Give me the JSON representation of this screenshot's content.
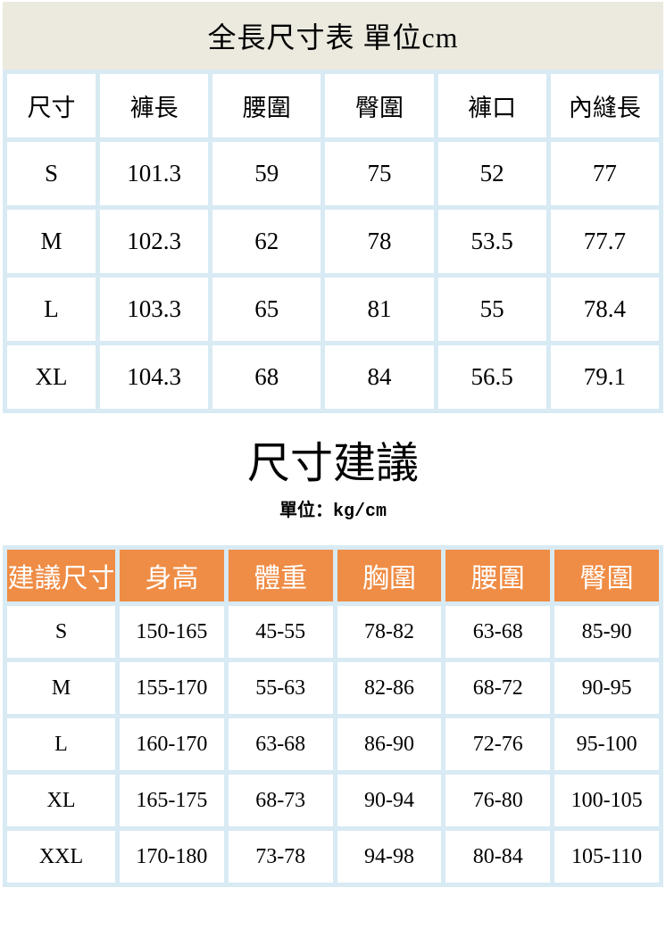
{
  "colors": {
    "banner_bg": "#ece9df",
    "grid_border": "#d8eaf3",
    "header_orange": "#ef8c45",
    "header_text": "#ffffff",
    "body_text": "#000000"
  },
  "size_table": {
    "title": "全長尺寸表 單位cm",
    "columns": [
      "尺寸",
      "褲長",
      "腰圍",
      "臀圍",
      "褲口",
      "內縫長"
    ],
    "rows": [
      [
        "S",
        "101.3",
        "59",
        "75",
        "52",
        "77"
      ],
      [
        "M",
        "102.3",
        "62",
        "78",
        "53.5",
        "77.7"
      ],
      [
        "L",
        "103.3",
        "65",
        "81",
        "55",
        "78.4"
      ],
      [
        "XL",
        "104.3",
        "68",
        "84",
        "56.5",
        "79.1"
      ]
    ]
  },
  "suggestion": {
    "title": "尺寸建議",
    "unit_label": "單位：",
    "unit_value": "kg/cm",
    "columns": [
      "建議尺寸",
      "身高",
      "體重",
      "胸圍",
      "腰圍",
      "臀圍"
    ],
    "rows": [
      [
        "S",
        "150-165",
        "45-55",
        "78-82",
        "63-68",
        "85-90"
      ],
      [
        "M",
        "155-170",
        "55-63",
        "82-86",
        "68-72",
        "90-95"
      ],
      [
        "L",
        "160-170",
        "63-68",
        "86-90",
        "72-76",
        "95-100"
      ],
      [
        "XL",
        "165-175",
        "68-73",
        "90-94",
        "76-80",
        "100-105"
      ],
      [
        "XXL",
        "170-180",
        "73-78",
        "94-98",
        "80-84",
        "105-110"
      ]
    ]
  }
}
